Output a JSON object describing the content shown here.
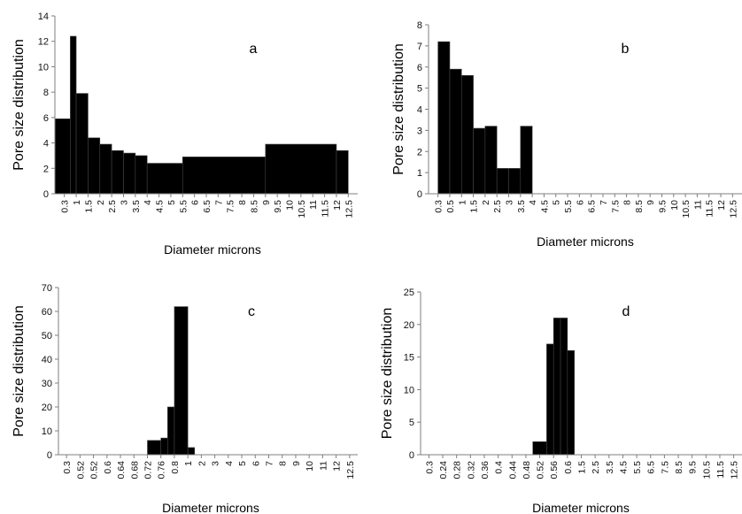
{
  "chart_data": [
    {
      "type": "bar",
      "panel_label": "a",
      "ylabel": "Pore size distribution",
      "xlabel": "Diameter microns",
      "ylim": [
        0,
        14
      ],
      "yticks": [
        0,
        2,
        4,
        6,
        8,
        10,
        12,
        14
      ],
      "tick_labels": [
        "0.3",
        "1",
        "1.5",
        "2",
        "2.5",
        "3",
        "3.5",
        "4",
        "4.5",
        "5",
        "5.5",
        "6",
        "6.5",
        "7",
        "7.5",
        "8",
        "8.5",
        "9",
        "9.5",
        "10",
        "10.5",
        "11",
        "11.5",
        "12",
        "12.5"
      ],
      "bars": [
        {
          "from": "0.3",
          "to": "0.3",
          "value": 5.9
        },
        {
          "from": "0.3",
          "to": "1",
          "value": 12.4
        },
        {
          "from": "1",
          "to": "1.5",
          "value": 7.9
        },
        {
          "from": "1.5",
          "to": "2",
          "value": 4.4
        },
        {
          "from": "2",
          "to": "2.5",
          "value": 3.9
        },
        {
          "from": "2.5",
          "to": "3",
          "value": 3.4
        },
        {
          "from": "3",
          "to": "3.5",
          "value": 3.2
        },
        {
          "from": "3.5",
          "to": "4",
          "value": 3.0
        },
        {
          "from": "4",
          "to": "5.5",
          "value": 2.4
        },
        {
          "from": "5.5",
          "to": "9",
          "value": 2.9
        },
        {
          "from": "9",
          "to": "12",
          "value": 3.9
        },
        {
          "from": "12",
          "to": "12.5",
          "value": 3.4
        }
      ]
    },
    {
      "type": "bar",
      "panel_label": "b",
      "ylabel": "Pore size distribution",
      "xlabel": "Diameter microns",
      "ylim": [
        0,
        8
      ],
      "yticks": [
        0,
        1,
        2,
        3,
        4,
        5,
        6,
        7,
        8
      ],
      "tick_labels": [
        "0.3",
        "0.5",
        "1",
        "1.5",
        "2",
        "2.5",
        "3",
        "3.5",
        "4",
        "4.5",
        "5",
        "5.5",
        "6",
        "6.5",
        "7",
        "7.5",
        "8",
        "8.5",
        "9",
        "9.5",
        "10",
        "10.5",
        "11",
        "11.5",
        "12",
        "12.5"
      ],
      "bars": [
        {
          "from": "0.3",
          "to": "0.5",
          "value": 7.2
        },
        {
          "from": "0.5",
          "to": "1",
          "value": 5.9
        },
        {
          "from": "1",
          "to": "1.5",
          "value": 5.6
        },
        {
          "from": "1.5",
          "to": "2",
          "value": 3.1
        },
        {
          "from": "2",
          "to": "2.5",
          "value": 3.2
        },
        {
          "from": "2.5",
          "to": "3",
          "value": 1.2
        },
        {
          "from": "3",
          "to": "3.5",
          "value": 1.2
        },
        {
          "from": "3.5",
          "to": "4",
          "value": 3.2
        }
      ]
    },
    {
      "type": "bar",
      "panel_label": "c",
      "ylabel": "Pore size distribution",
      "xlabel": "Diameter microns",
      "ylim": [
        0,
        70
      ],
      "yticks": [
        0,
        10,
        20,
        30,
        40,
        50,
        60,
        70
      ],
      "tick_labels": [
        "0.3",
        "0.52",
        "0.52",
        "0.6",
        "0.64",
        "0.68",
        "0.72",
        "0.76",
        "0.8",
        "1",
        "2",
        "3",
        "4",
        "5",
        "6",
        "7",
        "8",
        "9",
        "10",
        "11",
        "12",
        "12.5"
      ],
      "bars": [
        {
          "from": "0.72",
          "to": "0.76",
          "value": 6
        },
        {
          "from": "0.76",
          "to": "0.76",
          "value": 7
        },
        {
          "from": "0.76",
          "to": "0.8",
          "value": 20
        },
        {
          "from": "0.8",
          "to": "1",
          "value": 62
        },
        {
          "from": "1",
          "to": "1",
          "value": 3
        }
      ]
    },
    {
      "type": "bar",
      "panel_label": "d",
      "ylabel": "Pore size distribution",
      "xlabel": "Diameter microns",
      "ylim": [
        0,
        25
      ],
      "yticks": [
        0,
        5,
        10,
        15,
        20,
        25
      ],
      "tick_labels": [
        "0.3",
        "0.24",
        "0.28",
        "0.32",
        "0.36",
        "0.4",
        "0.44",
        "0.48",
        "0.52",
        "0.56",
        "0.6",
        "1.5",
        "2.5",
        "3.5",
        "4.5",
        "5.5",
        "6.5",
        "7.5",
        "8.5",
        "9.5",
        "10.5",
        "11.5",
        "12.5"
      ],
      "bars": [
        {
          "from": "0.52",
          "to": "0.52",
          "value": 2
        },
        {
          "from": "0.52",
          "to": "0.56",
          "value": 17
        },
        {
          "from": "0.56",
          "to": "0.56",
          "value": 21
        },
        {
          "from": "0.56",
          "to": "0.6",
          "value": 21
        },
        {
          "from": "0.6",
          "to": "0.6",
          "value": 16
        }
      ]
    }
  ]
}
